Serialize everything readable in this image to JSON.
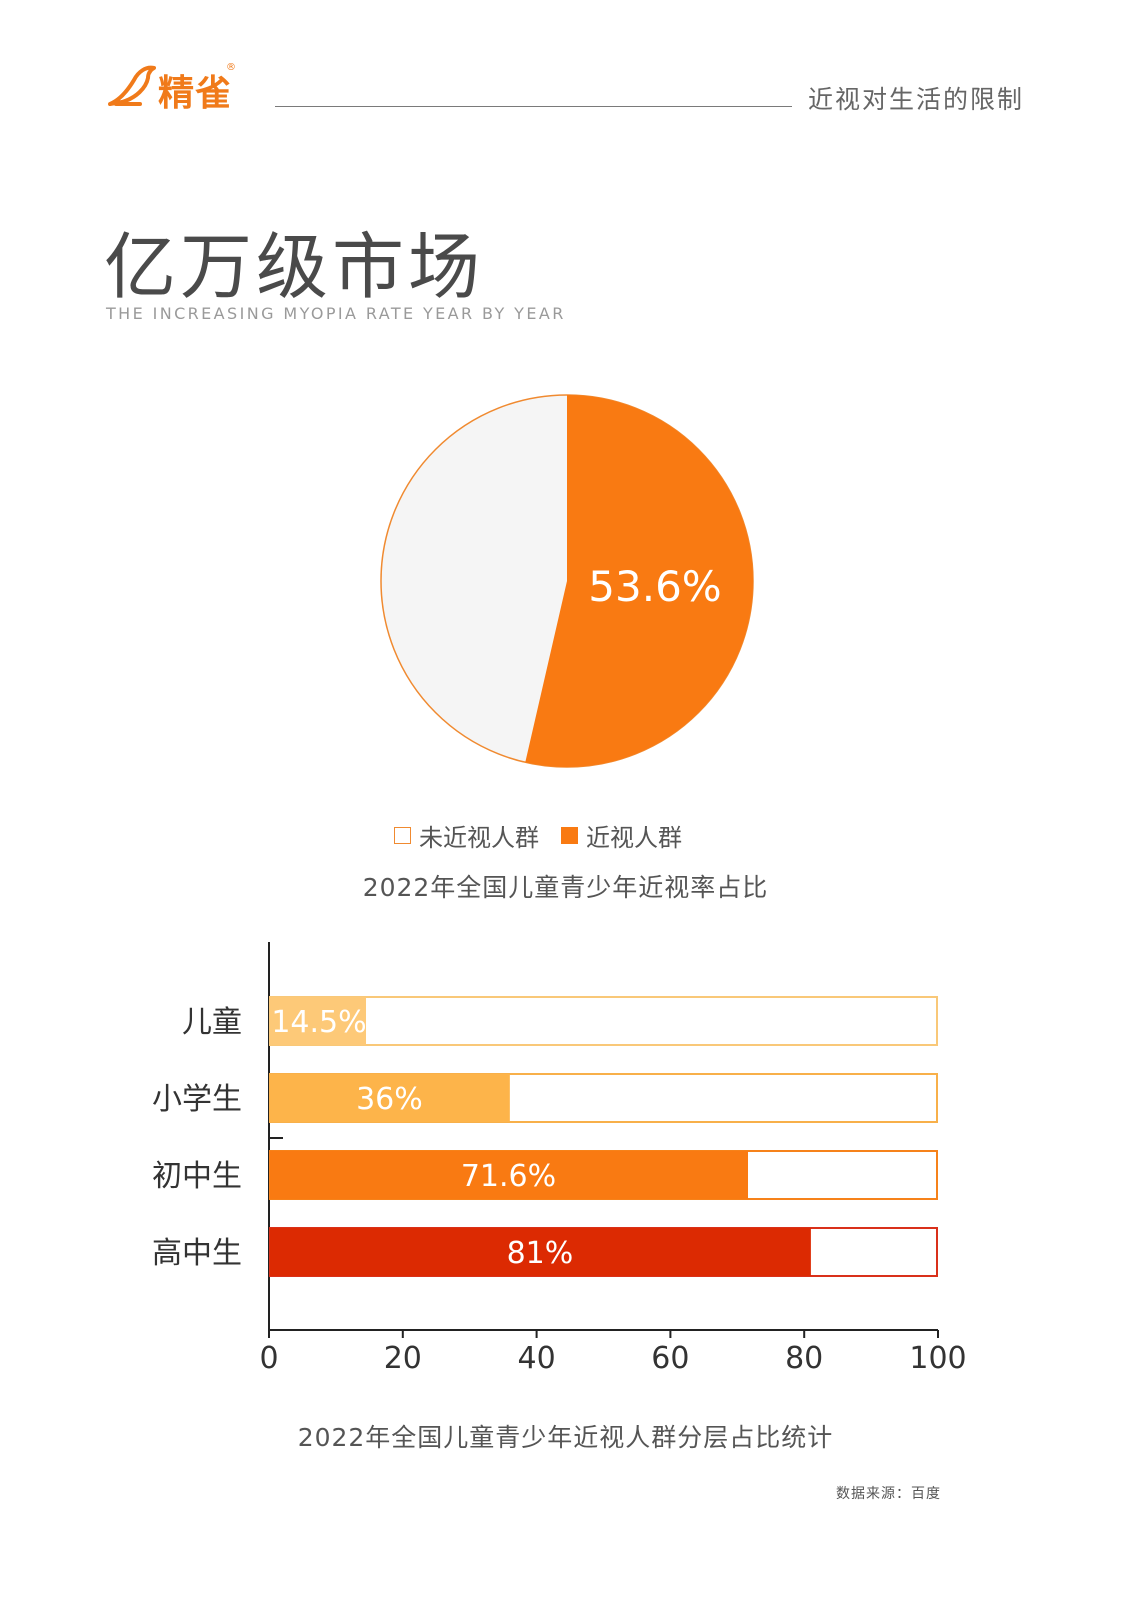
{
  "header": {
    "brand": "精雀",
    "brand_mark": "®",
    "section_title": "近视对生活的限制"
  },
  "title": "亿万级市场",
  "subtitle": "THE INCREASING MYOPIA RATE YEAR BY YEAR",
  "source": "数据来源：百度",
  "colors": {
    "orange": "#f97a12",
    "light_orange": "#fdb44a",
    "pale_orange": "#fdc978",
    "red": "#dc2a02",
    "pie_gray": "#f5f5f5"
  },
  "chart_data": [
    {
      "type": "pie",
      "title": "2022年全国儿童青少年近视率占比",
      "slices": [
        {
          "name": "未近视人群",
          "value": 46.4
        },
        {
          "name": "近视人群",
          "value": 53.6,
          "label": "53.6%"
        }
      ],
      "legend": [
        "未近视人群",
        "近视人群"
      ],
      "legend_position": "bottom"
    },
    {
      "type": "bar",
      "orientation": "horizontal",
      "title": "2022年全国儿童青少年近视人群分层占比统计",
      "categories": [
        "儿童",
        "小学生",
        "初中生",
        "高中生"
      ],
      "values": [
        14.5,
        36,
        71.6,
        81
      ],
      "labels": [
        "14.5%",
        "36%",
        "71.6%",
        "81%"
      ],
      "xlim": [
        0,
        100
      ],
      "xticks": [
        "0",
        "20",
        "40",
        "60",
        "80",
        "100"
      ],
      "grid": false
    }
  ]
}
